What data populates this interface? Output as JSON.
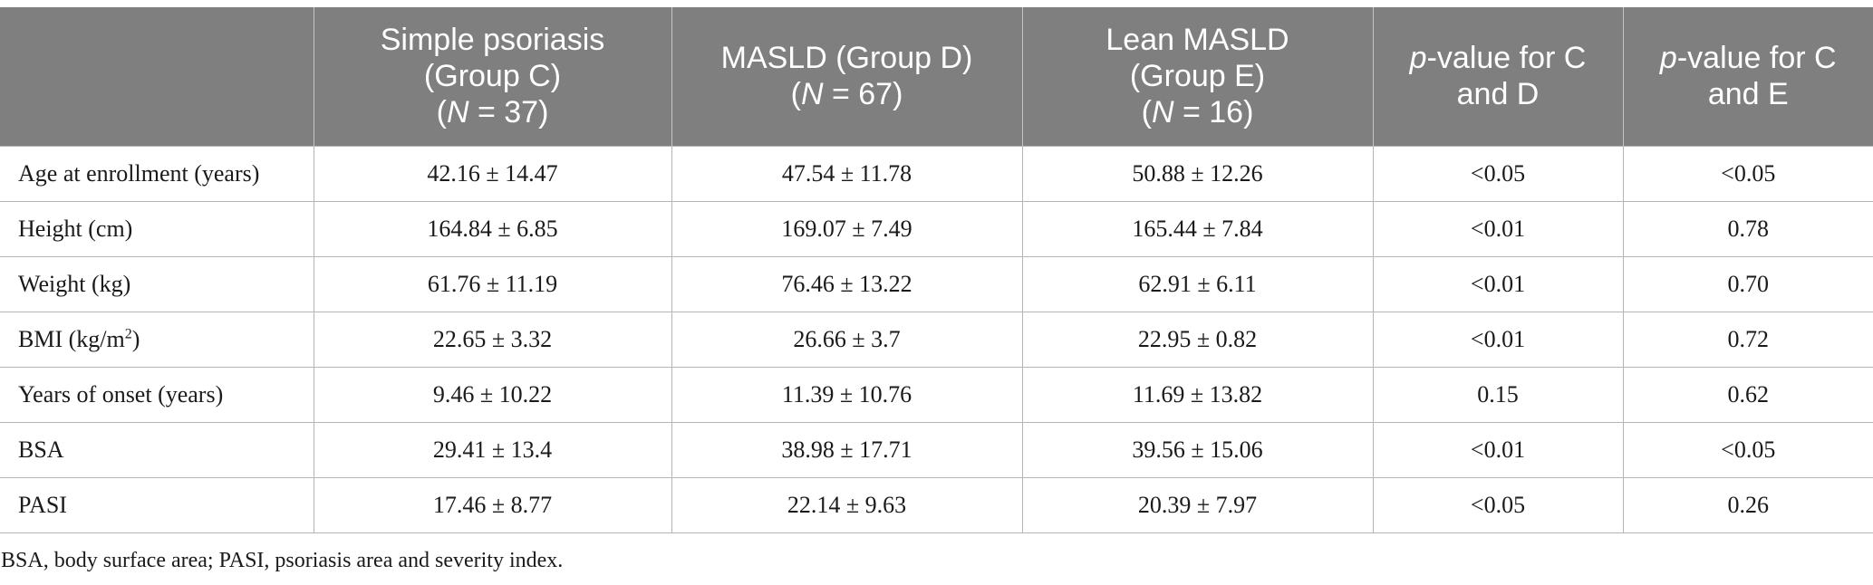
{
  "table": {
    "headers": [
      {
        "lines": [
          ""
        ]
      },
      {
        "lines": [
          "Simple psoriasis",
          "(Group C)"
        ],
        "n_italic": "N",
        "n_rest": " = 37)"
      },
      {
        "lines": [
          "MASLD (Group D)"
        ],
        "n_italic": "N",
        "n_rest": " = 67)"
      },
      {
        "lines": [
          "Lean MASLD",
          "(Group E)"
        ],
        "n_italic": "N",
        "n_rest": " = 16)"
      },
      {
        "p_italic": "p",
        "p_rest": "-value for C",
        "p_line2": "and D"
      },
      {
        "p_italic": "p",
        "p_rest": "-value for C",
        "p_line2": "and E"
      }
    ],
    "rows": [
      {
        "label": "Age at enrollment (years)",
        "c": "42.16 ± 14.47",
        "d": "47.54 ± 11.78",
        "e": "50.88 ± 12.26",
        "p_cd": "<0.05",
        "p_ce": "<0.05"
      },
      {
        "label": "Height (cm)",
        "c": "164.84 ± 6.85",
        "d": "169.07 ± 7.49",
        "e": "165.44 ± 7.84",
        "p_cd": "<0.01",
        "p_ce": "0.78"
      },
      {
        "label": "Weight (kg)",
        "c": "61.76 ± 11.19",
        "d": "76.46 ± 13.22",
        "e": "62.91 ± 6.11",
        "p_cd": "<0.01",
        "p_ce": "0.70"
      },
      {
        "label": "BMI (kg/m",
        "label_sup": "2",
        "label_after": ")",
        "c": "22.65 ± 3.32",
        "d": "26.66 ± 3.7",
        "e": "22.95 ± 0.82",
        "p_cd": "<0.01",
        "p_ce": "0.72"
      },
      {
        "label": "Years of onset (years)",
        "c": "9.46 ± 10.22",
        "d": "11.39 ± 10.76",
        "e": "11.69 ± 13.82",
        "p_cd": "0.15",
        "p_ce": "0.62"
      },
      {
        "label": "BSA",
        "c": "29.41 ± 13.4",
        "d": "38.98 ± 17.71",
        "e": "39.56 ± 15.06",
        "p_cd": "<0.01",
        "p_ce": "<0.05"
      },
      {
        "label": "PASI",
        "c": "17.46 ± 8.77",
        "d": "22.14 ± 9.63",
        "e": "20.39 ± 7.97",
        "p_cd": "<0.05",
        "p_ce": "0.26"
      }
    ]
  },
  "footnote": "BSA, body surface area; PASI, psoriasis area and severity index."
}
